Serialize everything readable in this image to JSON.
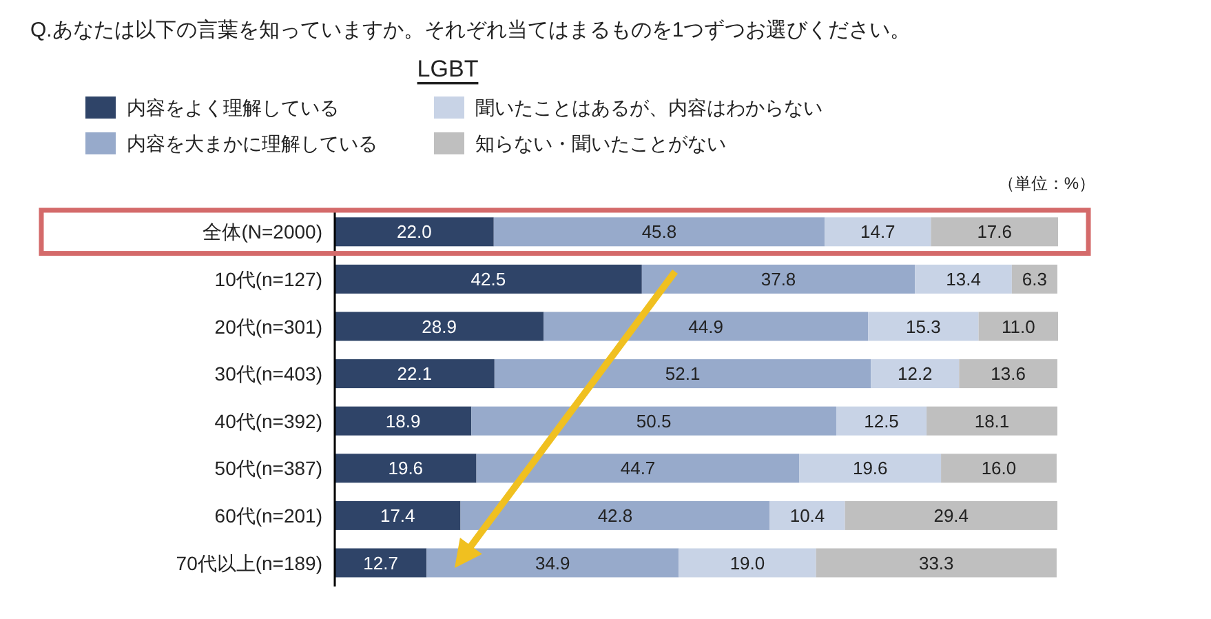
{
  "chart_data": {
    "type": "bar",
    "orientation": "horizontal",
    "stacked": true,
    "title": "Q.あなたは以下の言葉を知っていますか。それぞれ当てはまるものを1つずつお選びください。",
    "subtitle": "LGBT",
    "annotations": [
      "（単位：%）"
    ],
    "categories": [
      "全体(N=2000)",
      "10代(n=127)",
      "20代(n=301)",
      "30代(n=403)",
      "40代(n=392)",
      "50代(n=387)",
      "60代(n=201)",
      "70代以上(n=189)"
    ],
    "series": [
      {
        "name": "内容をよく理解している",
        "color": "#2f4468",
        "values": [
          22.0,
          42.5,
          28.9,
          22.1,
          18.9,
          19.6,
          17.4,
          12.7
        ],
        "value_labels": [
          "22.0",
          "42.5",
          "28.9",
          "22.1",
          "18.9",
          "19.6",
          "17.4",
          "12.7"
        ]
      },
      {
        "name": "内容を大まかに理解している",
        "color": "#97aacb",
        "values": [
          45.8,
          37.8,
          44.9,
          52.1,
          50.5,
          44.7,
          42.8,
          34.9
        ],
        "value_labels": [
          "45.8",
          "37.8",
          "44.9",
          "52.1",
          "50.5",
          "44.7",
          "42.8",
          "34.9"
        ]
      },
      {
        "name": "聞いたことはあるが、内容はわからない",
        "color": "#c8d3e6",
        "values": [
          14.7,
          13.4,
          15.3,
          12.2,
          12.5,
          19.6,
          10.4,
          19.0
        ],
        "value_labels": [
          "14.7",
          "13.4",
          "15.3",
          "12.2",
          "12.5",
          "19.6",
          "10.4",
          "19.0"
        ]
      },
      {
        "name": "知らない・聞いたことがない",
        "color": "#bfbfbf",
        "values": [
          17.6,
          6.3,
          11.0,
          13.6,
          18.1,
          16.0,
          29.4,
          33.3
        ],
        "value_labels": [
          "17.6",
          "6.3",
          "11.0",
          "13.6",
          "18.1",
          "16.0",
          "29.4",
          "33.3"
        ]
      }
    ],
    "legend": "top"
  }
}
